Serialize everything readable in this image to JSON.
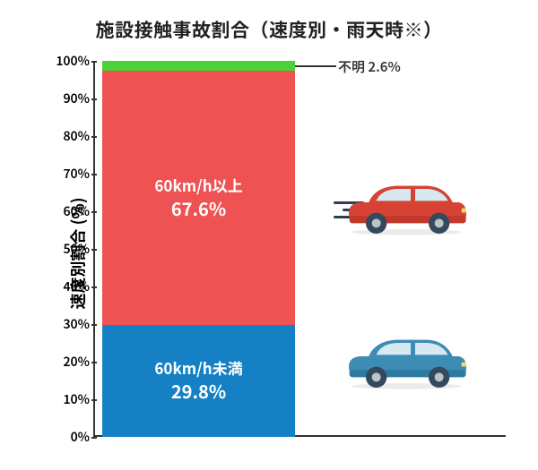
{
  "title": "施設接触事故割合（速度別・雨天時※）",
  "title_fontsize": 21,
  "y_axis_label": "速度別割合 (%)",
  "y_axis_label_fontsize": 18,
  "y_axis": {
    "min": 0,
    "max": 100,
    "step": 10,
    "tick_suffix": "%",
    "tick_fontsize": 14
  },
  "stacked_bar": {
    "type": "stacked-bar-100",
    "segments": [
      {
        "key": "under60",
        "label_line1": "60km/h未満",
        "value_text": "29.8%",
        "value": 29.8,
        "color": "#1581c4",
        "label_color": "#ffffff",
        "label_fontsize": 17
      },
      {
        "key": "over60",
        "label_line1": "60km/h以上",
        "value_text": "67.6%",
        "value": 67.6,
        "color": "#ee5253",
        "label_color": "#ffffff",
        "label_fontsize": 17
      },
      {
        "key": "unknown",
        "label_line1": "不明",
        "value_text": "2.6%",
        "value": 2.6,
        "color": "#4cd137",
        "label_color": "#333333",
        "label_fontsize": 15,
        "callout": true
      }
    ]
  },
  "callout_combined": "不明 2.6%",
  "cars": {
    "fast": {
      "body_color": "#c0392b",
      "body_light": "#e74c3c",
      "window_color": "#d6e9f0",
      "wheel_color": "#34495e",
      "hub_color": "#bdc3c7",
      "speed_line_color": "#2c3e50"
    },
    "slow": {
      "body_color": "#2d7ba3",
      "body_light": "#4a9bc7",
      "window_color": "#d6e9f0",
      "wheel_color": "#34495e",
      "hub_color": "#bdc3c7"
    }
  },
  "colors": {
    "axis": "#333333",
    "background": "#ffffff",
    "text": "#222222"
  }
}
